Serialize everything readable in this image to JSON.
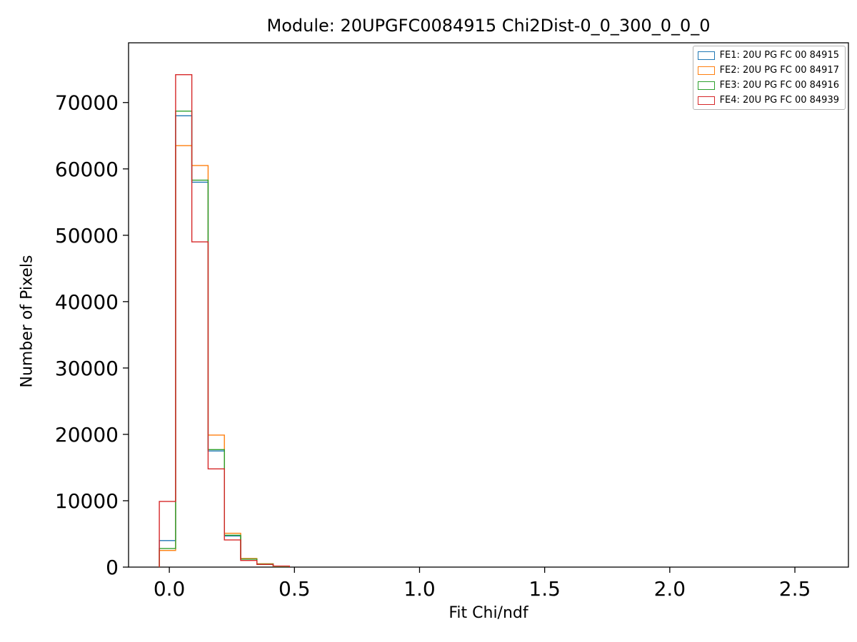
{
  "chart_data": {
    "type": "histogram-step",
    "title": "Module: 20UPGFC0084915 Chi2Dist-0_0_300_0_0_0",
    "xlabel": "Fit Chi/ndf",
    "ylabel": "Number of Pixels",
    "xlim": [
      -0.163,
      2.714
    ],
    "ylim": [
      0,
      79000
    ],
    "xticks": [
      0.0,
      0.5,
      1.0,
      1.5,
      2.0,
      2.5
    ],
    "yticks": [
      0,
      10000,
      20000,
      30000,
      40000,
      50000,
      60000,
      70000
    ],
    "grid": false,
    "legend_position": "upper right",
    "bin_edges": [
      -0.04,
      0.025,
      0.09,
      0.155,
      0.22,
      0.285,
      0.35,
      0.415,
      0.48
    ],
    "series": [
      {
        "name": "FE1: 20U PG FC 00 84915",
        "color": "#1f77b4",
        "values": [
          4000,
          68000,
          58000,
          17500,
          4700,
          1200,
          450,
          100
        ]
      },
      {
        "name": "FE2: 20U PG FC 00 84917",
        "color": "#ff7f0e",
        "values": [
          2500,
          63500,
          60500,
          19900,
          5100,
          1300,
          500,
          120
        ]
      },
      {
        "name": "FE3: 20U PG FC 00 84916",
        "color": "#2ca02c",
        "values": [
          2800,
          68700,
          58300,
          17700,
          4800,
          1200,
          450,
          100
        ]
      },
      {
        "name": "FE4: 20U PG FC 00 84939",
        "color": "#d62728",
        "values": [
          9900,
          74200,
          49000,
          14800,
          4100,
          1000,
          400,
          150
        ]
      }
    ]
  }
}
